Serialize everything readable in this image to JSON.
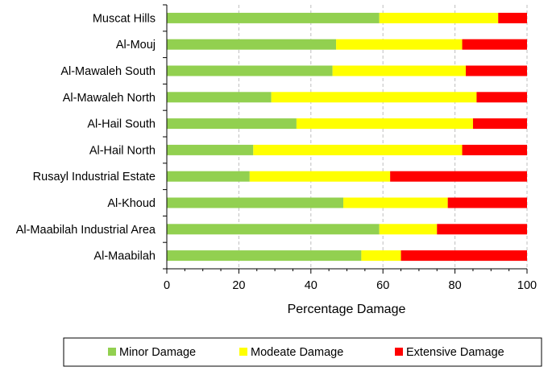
{
  "chart_data": {
    "type": "bar",
    "orientation": "horizontal",
    "stacked": true,
    "title": "",
    "xlabel": "Percentage Damage",
    "ylabel": "",
    "xlim": [
      0,
      100
    ],
    "xticks": [
      0,
      20,
      40,
      60,
      80,
      100
    ],
    "grid": "vertical dashed",
    "legend_position": "bottom",
    "categories": [
      "Muscat Hills",
      "Al-Mouj",
      "Al-Mawaleh South",
      "Al-Mawaleh North",
      "Al-Hail South",
      "Al-Hail North",
      "Rusayl Industrial Estate",
      "Al-Khoud",
      "Al-Maabilah Industrial Area",
      "Al-Maabilah"
    ],
    "series": [
      {
        "name": "Minor Damage",
        "color": "#92d050",
        "values": [
          59,
          47,
          46,
          29,
          36,
          24,
          23,
          49,
          59,
          54
        ]
      },
      {
        "name": "Modeate Damage",
        "color": "#ffff00",
        "values": [
          33,
          35,
          37,
          57,
          49,
          58,
          39,
          29,
          16,
          11
        ]
      },
      {
        "name": "Extensive Damage",
        "color": "#ff0000",
        "values": [
          8,
          18,
          17,
          14,
          15,
          18,
          38,
          22,
          25,
          35
        ]
      }
    ]
  }
}
